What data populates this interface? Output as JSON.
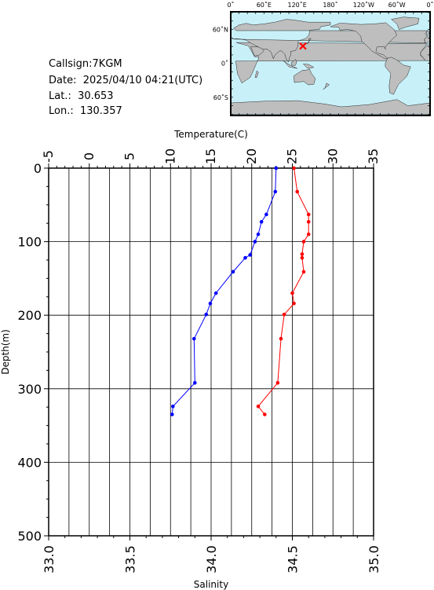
{
  "info": {
    "callsign": "Callsign:7KGM",
    "date": "Date:  2025/04/10 04:21(UTC)",
    "lat": "Lat.:  30.653",
    "lon": "Lon.:  130.357"
  },
  "map": {
    "top_ticks": [
      "0˚",
      "60˚E",
      "120˚E",
      "180˚",
      "120˚W",
      "60˚W",
      "0˚"
    ],
    "left_ticks": [
      "60˚N",
      "0˚",
      "60˚S"
    ],
    "ocean_color": "#c8f0f8",
    "land_color": "#bebebe",
    "marker_color": "#ff0000"
  },
  "chart_data": {
    "type": "line",
    "top_axis": {
      "label": "Temperature(C)",
      "range": [
        -5,
        35
      ],
      "ticks": [
        "-5",
        "0",
        "5",
        "10",
        "15",
        "20",
        "25",
        "30",
        "35"
      ]
    },
    "bottom_axis": {
      "label": "Salinity",
      "range": [
        33.0,
        35.0
      ],
      "ticks": [
        "33.0",
        "33.5",
        "34.0",
        "34.5",
        "35.0"
      ]
    },
    "left_axis": {
      "label": "Depth(m)",
      "range": [
        0,
        500
      ],
      "inverted": true,
      "ticks": [
        "0",
        "100",
        "200",
        "300",
        "400",
        "500"
      ]
    },
    "grid": true,
    "series": [
      {
        "axis": "top",
        "color": "#0000ff",
        "points": [
          [
            23.0,
            0
          ],
          [
            22.9,
            32
          ],
          [
            21.8,
            63
          ],
          [
            21.2,
            73
          ],
          [
            20.8,
            90
          ],
          [
            20.4,
            100
          ],
          [
            19.8,
            118
          ],
          [
            19.2,
            122
          ],
          [
            17.7,
            141
          ],
          [
            15.6,
            170
          ],
          [
            14.9,
            184
          ],
          [
            14.4,
            199
          ],
          [
            12.9,
            232
          ],
          [
            13.0,
            292
          ],
          [
            10.3,
            324
          ],
          [
            10.2,
            335
          ]
        ]
      },
      {
        "axis": "bottom",
        "color": "#ff0000",
        "points": [
          [
            34.51,
            0
          ],
          [
            34.53,
            32
          ],
          [
            34.6,
            63
          ],
          [
            34.6,
            73
          ],
          [
            34.6,
            90
          ],
          [
            34.57,
            100
          ],
          [
            34.56,
            117
          ],
          [
            34.56,
            122
          ],
          [
            34.57,
            141
          ],
          [
            34.5,
            170
          ],
          [
            34.51,
            184
          ],
          [
            34.45,
            199
          ],
          [
            34.43,
            232
          ],
          [
            34.41,
            292
          ],
          [
            34.29,
            324
          ],
          [
            34.33,
            335
          ]
        ]
      }
    ]
  }
}
